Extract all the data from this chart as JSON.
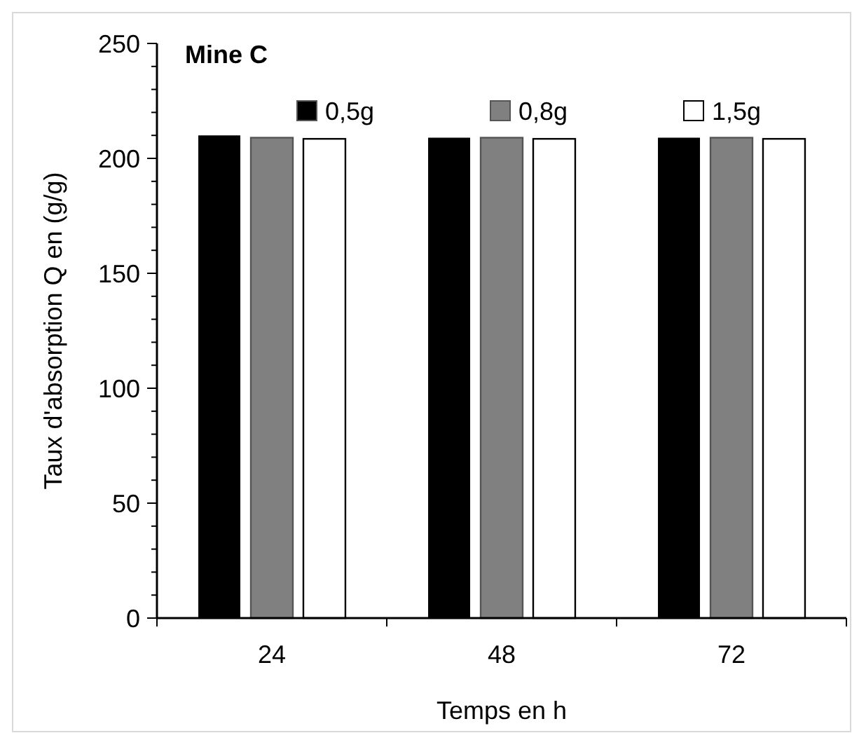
{
  "chart_data": {
    "type": "bar",
    "title": "Mine C",
    "xlabel": "Temps en h",
    "ylabel": "Taux d'absorption Q en (g/g)",
    "categories": [
      "24",
      "48",
      "72"
    ],
    "series": [
      {
        "name": "0,5g",
        "color": "#000000",
        "values": [
          210,
          209,
          209
        ]
      },
      {
        "name": "0,8g",
        "color": "#808080",
        "values": [
          209,
          209,
          209
        ]
      },
      {
        "name": "1,5g",
        "color": "#ffffff",
        "values": [
          208.5,
          208.5,
          208.5
        ]
      }
    ],
    "ylim": [
      0,
      250
    ],
    "yticks": [
      0,
      {
        "value": 10,
        "label": null
      },
      {
        "value": 20,
        "label": null
      },
      {
        "value": 30,
        "label": null
      },
      {
        "value": 40,
        "label": null
      },
      50,
      {
        "value": 60,
        "label": null
      },
      {
        "value": 70,
        "label": null
      },
      {
        "value": 80,
        "label": null
      },
      {
        "value": 90,
        "label": null
      },
      100,
      {
        "value": 110,
        "label": null
      },
      {
        "value": 120,
        "label": null
      },
      {
        "value": 130,
        "label": null
      },
      {
        "value": 140,
        "label": null
      },
      150,
      {
        "value": 160,
        "label": null
      },
      {
        "value": 170,
        "label": null
      },
      {
        "value": 180,
        "label": null
      },
      {
        "value": 190,
        "label": null
      },
      200,
      {
        "value": 210,
        "label": null
      },
      {
        "value": 220,
        "label": null
      },
      {
        "value": 230,
        "label": null
      },
      {
        "value": 240,
        "label": null
      },
      250
    ],
    "grid": false,
    "legend": "top"
  }
}
